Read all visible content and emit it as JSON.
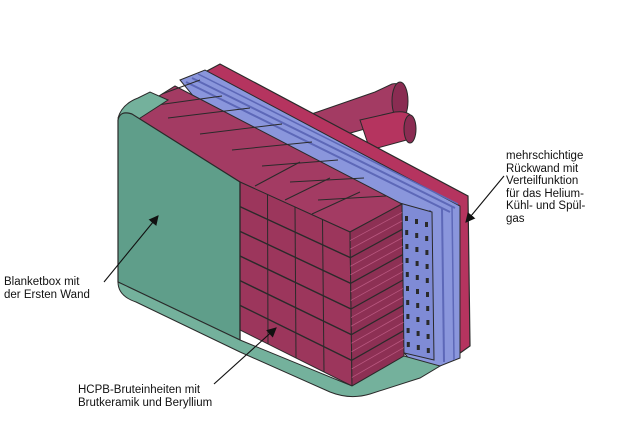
{
  "labels": {
    "back_wall": [
      "mehrschichtige",
      "Rückwand mit",
      "Verteilfunktion",
      "für das Helium-",
      "Kühl- und Spül-",
      "gas"
    ],
    "blanket_box": [
      "Blanketbox mit",
      "der Ersten Wand"
    ],
    "breeding_units": [
      "HCPB-Bruteinheiten mit",
      "Brutkeramik und Beryllium"
    ]
  },
  "colors": {
    "first_wall": "#5f9e8a",
    "breeder": "#a33b63",
    "breeder_dark": "#7d2a4b",
    "breeder_light": "#c0557f",
    "manifold": "#8a96dc",
    "manifold_dark": "#5d68b8",
    "casing": "#b5345f",
    "outline": "#2a2a2a"
  }
}
